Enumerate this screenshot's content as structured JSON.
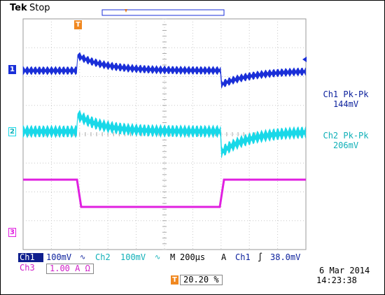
{
  "header": {
    "brand": "Tek",
    "status": "Stop"
  },
  "channels": [
    {
      "marker": "1",
      "color": "#1a2fd8"
    },
    {
      "marker": "2",
      "color": "#18d8e8"
    },
    {
      "marker": "3",
      "color": "#e020e0"
    }
  ],
  "trigger_marker": "T",
  "measurements": {
    "ch1": {
      "label": "Ch1 Pk-Pk",
      "value": "144mV"
    },
    "ch2": {
      "label": "Ch2 Pk-Pk",
      "value": "206mV"
    }
  },
  "readout": {
    "ch1_name": "Ch1",
    "ch1_scale": "100mV",
    "ch1_coupling": "∿",
    "ch2_name": "Ch2",
    "ch2_scale": "100mV",
    "ch2_coupling": "∿",
    "timebase_prefix": "M",
    "timebase": "200µs",
    "trigger_prefix": "A",
    "trigger_source": "Ch1",
    "trigger_slope": "∫",
    "trigger_level": "38.0mV",
    "ch3_name": "Ch3",
    "ch3_scale": "1.00 A Ω",
    "trigger_position_marker": "T",
    "trigger_position": "20.20 %",
    "date": "6 Mar  2014",
    "time": "14:23:38"
  }
}
